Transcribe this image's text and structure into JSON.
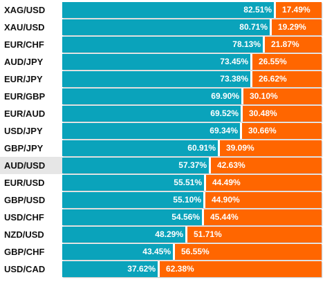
{
  "chart_data": {
    "type": "bar",
    "stacked": true,
    "orientation": "horizontal",
    "colors": {
      "long": "#0aa3bb",
      "short": "#ff6600",
      "highlight_row": "#e6e6e6"
    },
    "highlighted": "AUD/USD",
    "categories": [
      "XAG/USD",
      "XAU/USD",
      "EUR/CHF",
      "AUD/JPY",
      "EUR/JPY",
      "EUR/GBP",
      "EUR/AUD",
      "USD/JPY",
      "GBP/JPY",
      "AUD/USD",
      "EUR/USD",
      "GBP/USD",
      "USD/CHF",
      "NZD/USD",
      "GBP/CHF",
      "USD/CAD"
    ],
    "series": [
      {
        "values": [
          82.51,
          80.71,
          78.13,
          73.45,
          73.38,
          69.9,
          69.52,
          69.34,
          60.91,
          57.37,
          55.51,
          55.1,
          54.56,
          48.29,
          43.45,
          37.62
        ]
      },
      {
        "values": [
          17.49,
          19.29,
          21.87,
          26.55,
          26.62,
          30.1,
          30.48,
          30.66,
          39.09,
          42.63,
          44.49,
          44.9,
          45.44,
          51.71,
          56.55,
          62.38
        ]
      }
    ],
    "labels_long": [
      "82.51%",
      "80.71%",
      "78.13%",
      "73.45%",
      "73.38%",
      "69.90%",
      "69.52%",
      "69.34%",
      "60.91%",
      "57.37%",
      "55.51%",
      "55.10%",
      "54.56%",
      "48.29%",
      "43.45%",
      "37.62%"
    ],
    "labels_short": [
      "17.49%",
      "19.29%",
      "21.87%",
      "26.55%",
      "26.62%",
      "30.10%",
      "30.48%",
      "30.66%",
      "39.09%",
      "42.63%",
      "44.49%",
      "44.90%",
      "45.44%",
      "51.71%",
      "56.55%",
      "62.38%"
    ],
    "xlim": [
      0,
      100
    ]
  }
}
